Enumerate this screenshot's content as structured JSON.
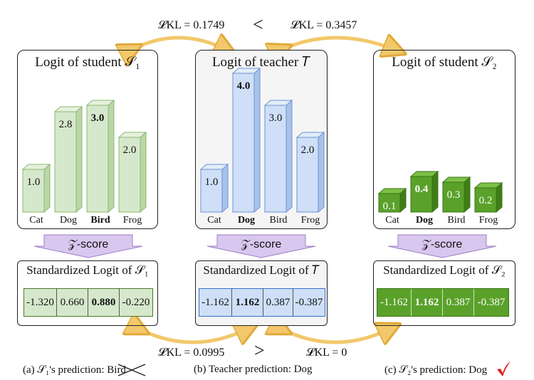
{
  "kl_top_left": "𝓛KL = 0.1749",
  "kl_top_right": "𝓛KL = 0.3457",
  "kl_bottom_left": "𝓛KL = 0.0995",
  "kl_bottom_right": "𝓛KL = 0",
  "cmp_top": "<",
  "cmp_bottom": ">",
  "zscore_label": "𝒵-score",
  "panels": [
    {
      "title": "Logit of student 𝒮₁",
      "categories": [
        "Cat",
        "Dog",
        "Bird",
        "Frog"
      ],
      "values": [
        "1.0",
        "2.8",
        "3.0",
        "2.0"
      ],
      "bold_index": 2,
      "std_title": "Standardized Logit of 𝒮₁",
      "std_values": [
        "-1.320",
        "0.660",
        "0.880",
        "-0.220"
      ],
      "caption_prefix": "(a) 𝒮₁'s prediction: ",
      "caption_pred": "Bird"
    },
    {
      "title": "Logit of teacher 𝑇",
      "categories": [
        "Cat",
        "Dog",
        "Bird",
        "Frog"
      ],
      "values": [
        "1.0",
        "4.0",
        "3.0",
        "2.0"
      ],
      "bold_index": 1,
      "std_title": "Standardized Logit of 𝑇",
      "std_values": [
        "-1.162",
        "1.162",
        "0.387",
        "-0.387"
      ],
      "caption_prefix": "(b) Teacher prediction: ",
      "caption_pred": "Dog"
    },
    {
      "title": "Logit of student 𝒮₂",
      "categories": [
        "Cat",
        "Dog",
        "Bird",
        "Frog"
      ],
      "values": [
        "0.1",
        "0.4",
        "0.3",
        "0.2"
      ],
      "bold_index": 1,
      "std_title": "Standardized Logit of 𝒮₂",
      "std_values": [
        "-1.162",
        "1.162",
        "0.387",
        "-0.387"
      ],
      "caption_prefix": "(c) 𝒮₂'s prediction: ",
      "caption_pred": "Dog"
    }
  ],
  "colors": {
    "green_face": "#d6e8cc",
    "green_side": "#b9d6a8",
    "green_top": "#e6f1de",
    "green_stroke": "#8cb870",
    "blue_face": "#cfdff7",
    "blue_side": "#a9c2ea",
    "blue_top": "#e3ecfa",
    "blue_stroke": "#6d93d6",
    "dgreen_face": "#5aa12a",
    "dgreen_side": "#3f7e17",
    "dgreen_top": "#7cc046",
    "dgreen_stroke": "#3a7414",
    "arrow": "#f2c86a",
    "arrow_edge": "#e0a93a",
    "zarrow": "#d9c7ef",
    "zarrow_edge": "#9c7fc6",
    "check": "#e0242b",
    "cross": "#222222"
  }
}
